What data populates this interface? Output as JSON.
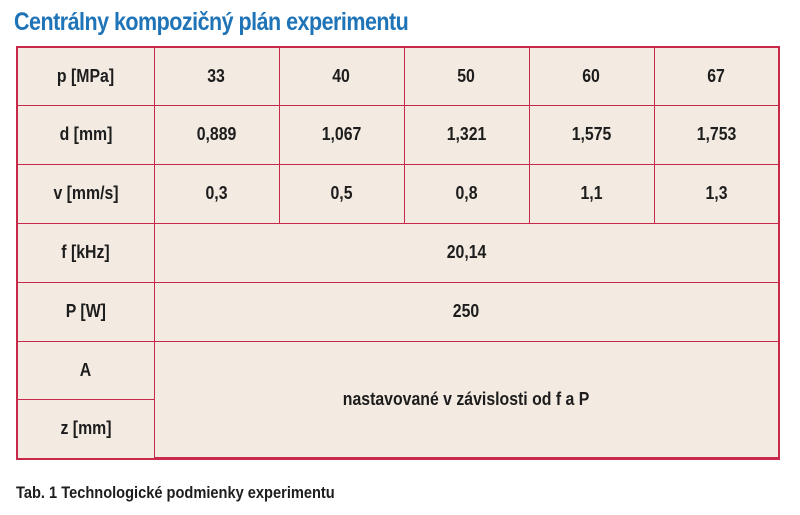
{
  "title": "Centrálny kompozičný plán experimentu",
  "caption": "Tab. 1 Technologické podmienky experimentu",
  "colors": {
    "title": "#1f73b7",
    "border": "#c8294b",
    "table_background": "#f3ebe2",
    "text": "#1d1d1d"
  },
  "table": {
    "rows": [
      {
        "label": "p [MPa]",
        "values": [
          "33",
          "40",
          "50",
          "60",
          "67"
        ]
      },
      {
        "label": "d [mm]",
        "values": [
          "0,889",
          "1,067",
          "1,321",
          "1,575",
          "1,753"
        ]
      },
      {
        "label": "v [mm/s]",
        "values": [
          "0,3",
          "0,5",
          "0,8",
          "1,1",
          "1,3"
        ]
      },
      {
        "label": "f [kHz]",
        "value": "20,14"
      },
      {
        "label": "P [W]",
        "value": "250"
      },
      {
        "label": "A"
      },
      {
        "label": "z [mm]"
      }
    ],
    "merged_note": "nastavované v závislosti od f a P"
  }
}
